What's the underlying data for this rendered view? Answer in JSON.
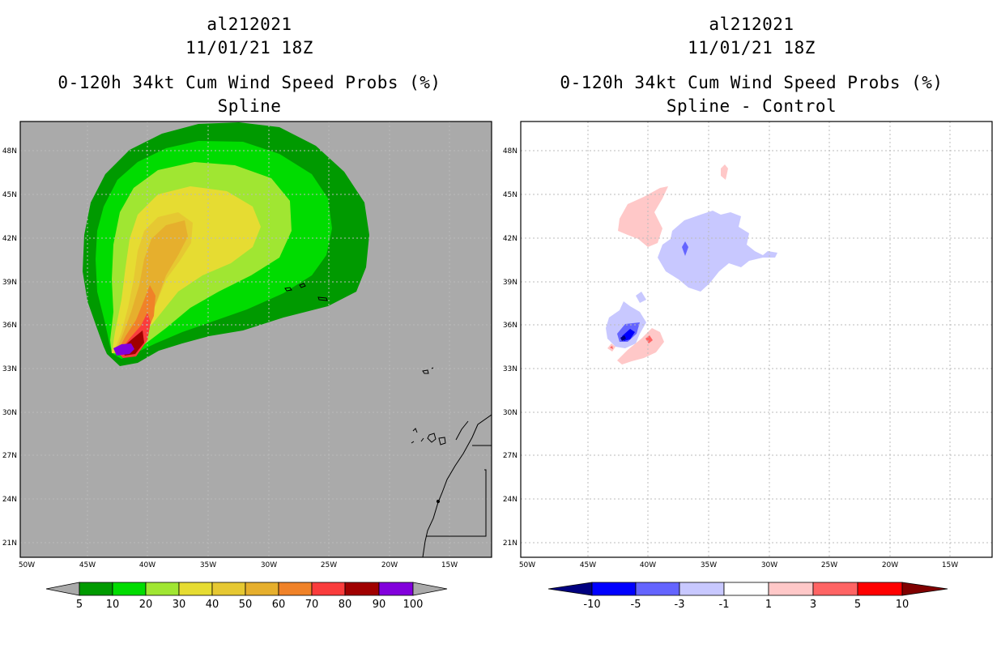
{
  "panels": [
    {
      "title_lines": [
        "al212021",
        "11/01/21 18Z",
        "0-120h 34kt Cum Wind Speed Probs (%)",
        "Spline"
      ],
      "colorbar": {
        "labels": [
          "5",
          "10",
          "20",
          "30",
          "40",
          "50",
          "60",
          "70",
          "80",
          "90",
          "100"
        ],
        "colors": [
          "#009a00",
          "#00dc00",
          "#a0e632",
          "#e6dc32",
          "#e6c832",
          "#e6af2d",
          "#f08228",
          "#fa3c3c",
          "#a00000",
          "#8200dc"
        ]
      }
    },
    {
      "title_lines": [
        "al212021",
        "11/01/21 18Z",
        "0-120h 34kt Cum Wind Speed Probs (%)",
        "Spline - Control"
      ],
      "colorbar": {
        "labels": [
          "-10",
          "-5",
          "-3",
          "-1",
          "1",
          "3",
          "5",
          "10"
        ],
        "colors": [
          "#0000ff",
          "#6464ff",
          "#c8c8ff",
          "#ffffff",
          "#ffc8c8",
          "#ff6464",
          "#ff0000"
        ]
      }
    }
  ],
  "axes": {
    "lat_labels": [
      "48N",
      "45N",
      "42N",
      "39N",
      "36N",
      "33N",
      "30N",
      "27N",
      "24N",
      "21N"
    ],
    "lon_labels": [
      "50W",
      "45W",
      "40W",
      "35W",
      "30W",
      "25W",
      "20W",
      "15W"
    ]
  },
  "colors": {
    "background": "#aaaaaa",
    "land_outline": "#000000",
    "grid": "#bbbbbb"
  }
}
